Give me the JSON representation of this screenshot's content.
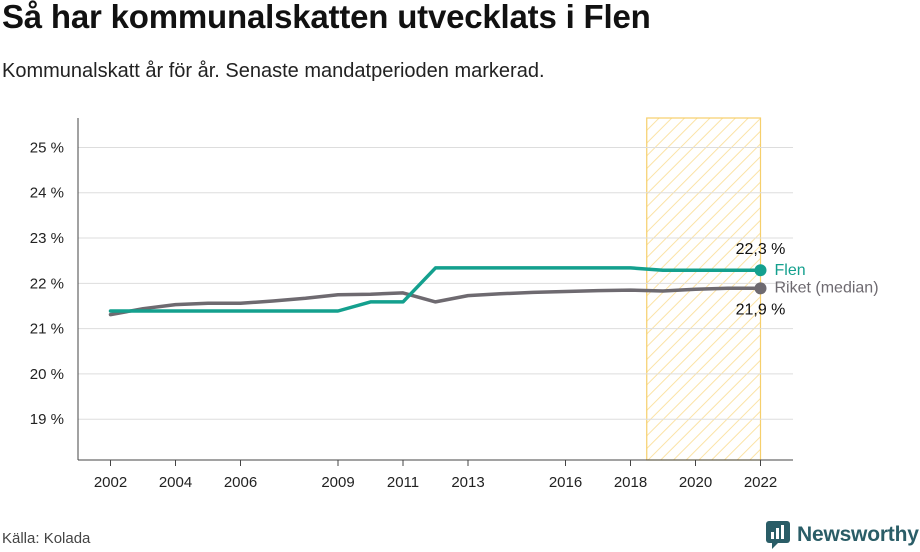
{
  "title": "Så har kommunalskatten utvecklats i Flen",
  "subtitle": "Kommunalskatt år för år. Senaste mandatperioden markerad.",
  "source": "Källa: Kolada",
  "brand": "Newsworthy",
  "colors": {
    "flen": "#14a08e",
    "riket": "#6e6a70",
    "highlight_fill": "#fbe3a6",
    "highlight_stroke": "#f6cf6b",
    "grid": "#dddddd",
    "brand": "#2a5d67"
  },
  "chart_data": {
    "type": "line",
    "x": [
      2002,
      2003,
      2004,
      2005,
      2006,
      2007,
      2008,
      2009,
      2010,
      2011,
      2012,
      2013,
      2014,
      2015,
      2016,
      2017,
      2018,
      2019,
      2020,
      2021,
      2022
    ],
    "x_ticks": [
      2002,
      2004,
      2006,
      2009,
      2011,
      2013,
      2016,
      2018,
      2020,
      2022
    ],
    "y_ticks": [
      19,
      20,
      21,
      22,
      23,
      24,
      25
    ],
    "y_tick_labels": [
      "19 %",
      "20 %",
      "21 %",
      "22 %",
      "23 %",
      "24 %",
      "25 %"
    ],
    "xlim": [
      2001,
      2023
    ],
    "ylim": [
      18.1,
      25.65
    ],
    "series": [
      {
        "name": "Flen",
        "key": "flen",
        "values": [
          21.39,
          21.39,
          21.39,
          21.39,
          21.39,
          21.39,
          21.39,
          21.39,
          21.59,
          21.59,
          22.34,
          22.34,
          22.34,
          22.34,
          22.34,
          22.34,
          22.34,
          22.29,
          22.29,
          22.29,
          22.29
        ],
        "end_label": "22,3 %"
      },
      {
        "name": "Riket (median)",
        "key": "riket",
        "values": [
          21.31,
          21.44,
          21.53,
          21.56,
          21.56,
          21.61,
          21.67,
          21.75,
          21.76,
          21.79,
          21.59,
          21.73,
          21.77,
          21.8,
          21.82,
          21.84,
          21.85,
          21.83,
          21.87,
          21.89,
          21.89
        ],
        "end_label": "21,9 %"
      }
    ],
    "highlight": {
      "from": 2018.5,
      "to": 2022
    },
    "grid": true,
    "legend": "end-of-line labels"
  }
}
